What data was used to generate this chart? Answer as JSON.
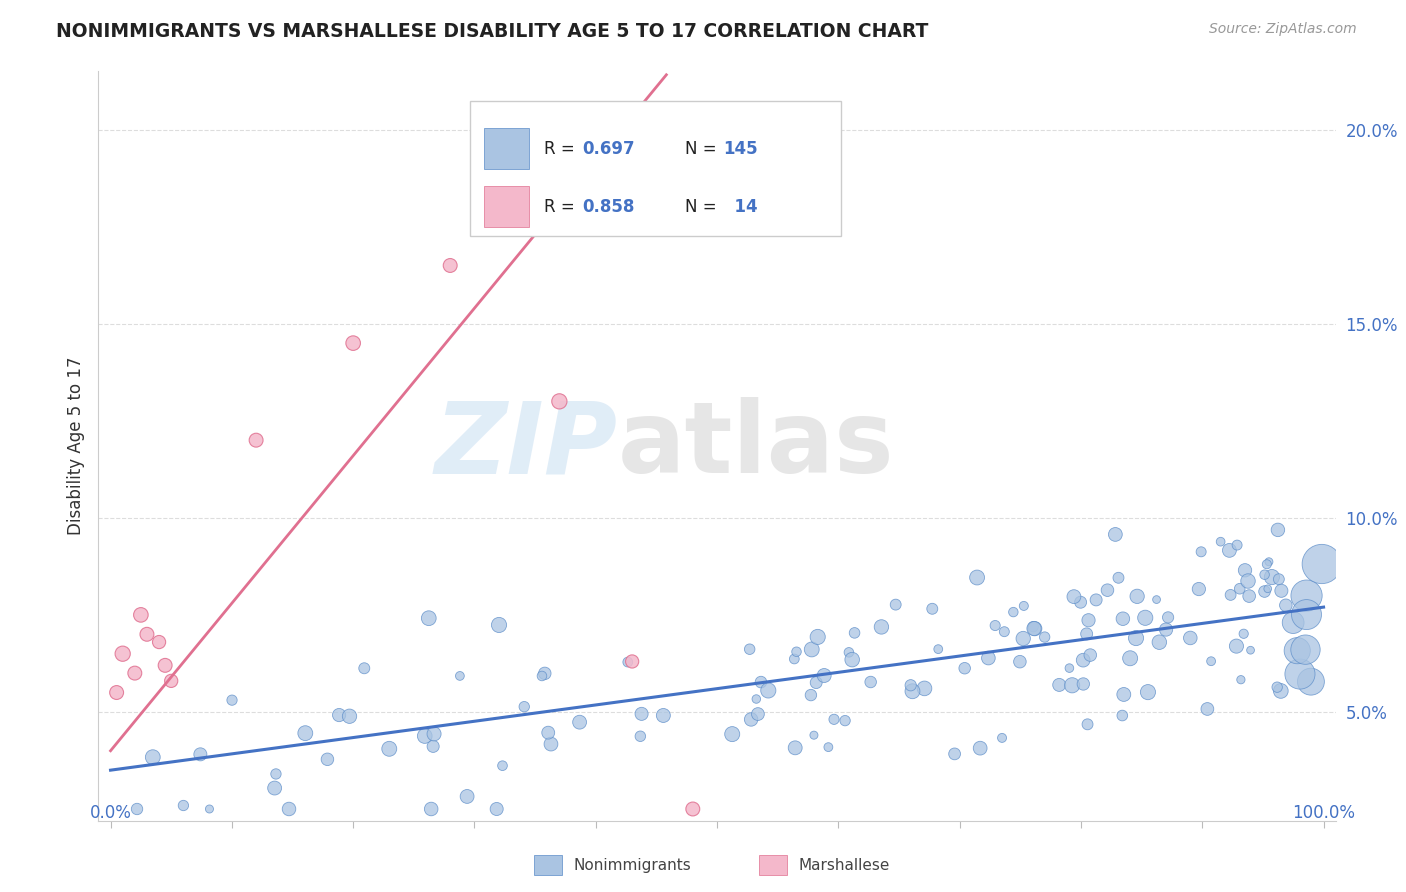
{
  "title": "NONIMMIGRANTS VS MARSHALLESE DISABILITY AGE 5 TO 17 CORRELATION CHART",
  "source": "Source: ZipAtlas.com",
  "ylabel": "Disability Age 5 to 17",
  "x_range": [
    -0.01,
    1.01
  ],
  "y_range": [
    0.022,
    0.215
  ],
  "y_ticks": [
    0.05,
    0.1,
    0.15,
    0.2
  ],
  "y_tick_labels": [
    "5.0%",
    "10.0%",
    "15.0%",
    "20.0%"
  ],
  "nonimmigrants_color": "#aac4e2",
  "nonimmigrants_edge_color": "#5b8cc8",
  "nonimmigrants_line_color": "#4472c4",
  "marshallese_color": "#f4b8cb",
  "marshallese_edge_color": "#e07090",
  "marshallese_line_color": "#e07090",
  "R_nonimmigrants": 0.697,
  "N_nonimmigrants": 145,
  "R_marshallese": 0.858,
  "N_marshallese": 14,
  "background_color": "#ffffff",
  "watermark_zip": "ZIP",
  "watermark_atlas": "atlas",
  "grid_color": "#dddddd",
  "nonimm_slope": 0.042,
  "nonimm_intercept": 0.035,
  "marsh_slope": 0.38,
  "marsh_intercept": 0.04
}
